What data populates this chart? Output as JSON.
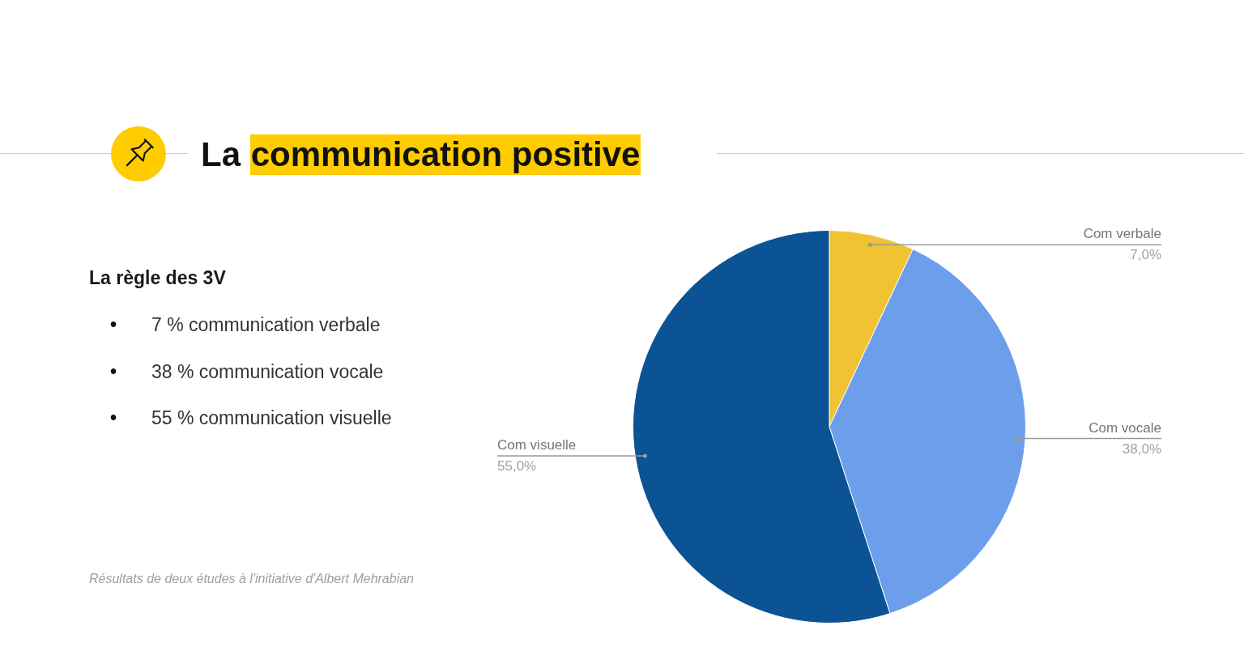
{
  "chart_data": {
    "type": "pie",
    "title": "La communication positive",
    "subtitle": "La règle des 3V",
    "categories": [
      "Com verbale",
      "Com vocale",
      "Com visuelle"
    ],
    "values": [
      7,
      38,
      55
    ],
    "colors": [
      "#f1c232",
      "#6d9eeb",
      "#0b5394"
    ],
    "value_labels": [
      "7,0%",
      "38,0%",
      "55,0%"
    ],
    "annotations": [
      "• 7 % communication verbale",
      "• 38 % communication vocale",
      "• 55 % communication visuelle",
      "Résultats de deux études à l'initiative d'Albert Mehrabian"
    ]
  }
}
